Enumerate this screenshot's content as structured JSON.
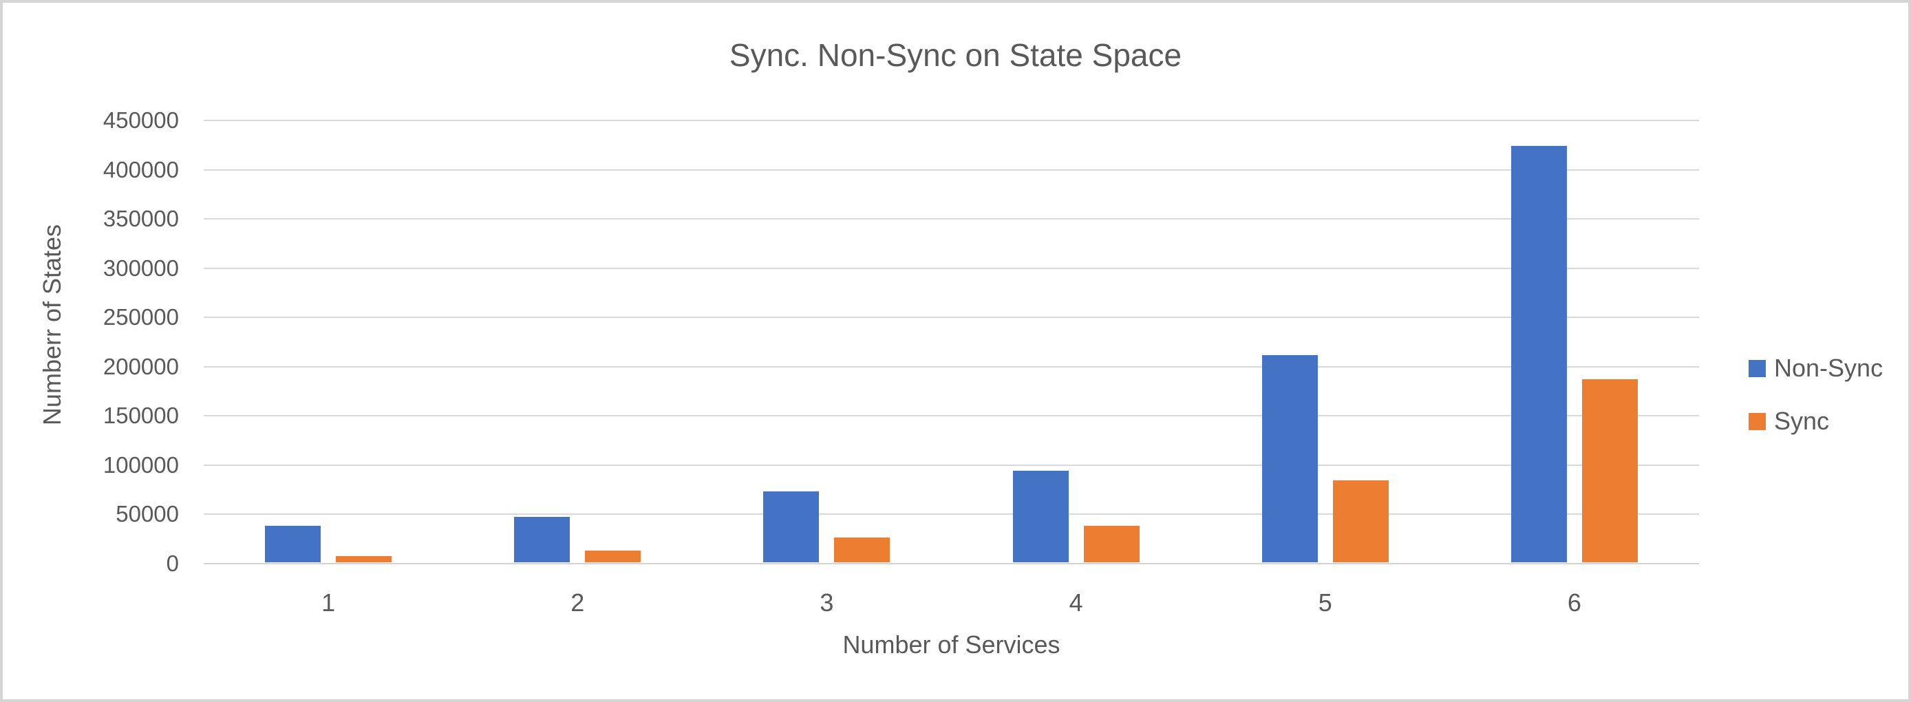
{
  "chart_data": {
    "type": "bar",
    "title": "Sync. Non-Sync on State Space",
    "xlabel": "Number of Services",
    "ylabel": "Numberr of States",
    "categories": [
      "1",
      "2",
      "3",
      "4",
      "5",
      "6"
    ],
    "series": [
      {
        "name": "Non-Sync",
        "color": "#4472C4",
        "values": [
          37000,
          46000,
          72000,
          93000,
          210000,
          423000
        ]
      },
      {
        "name": "Sync",
        "color": "#ED7D31",
        "values": [
          6000,
          12000,
          25000,
          37000,
          83000,
          186000
        ]
      }
    ],
    "ylim": [
      0,
      450000
    ],
    "yticks": [
      0,
      50000,
      100000,
      150000,
      200000,
      250000,
      300000,
      350000,
      400000,
      450000
    ],
    "grid": true,
    "legend_position": "right",
    "colors": {
      "gridline": "#d9d9d9",
      "axis_line": "#d3d3d3",
      "text": "#595959",
      "background": "#ffffff",
      "frame_border": "#d5d5d5"
    }
  }
}
